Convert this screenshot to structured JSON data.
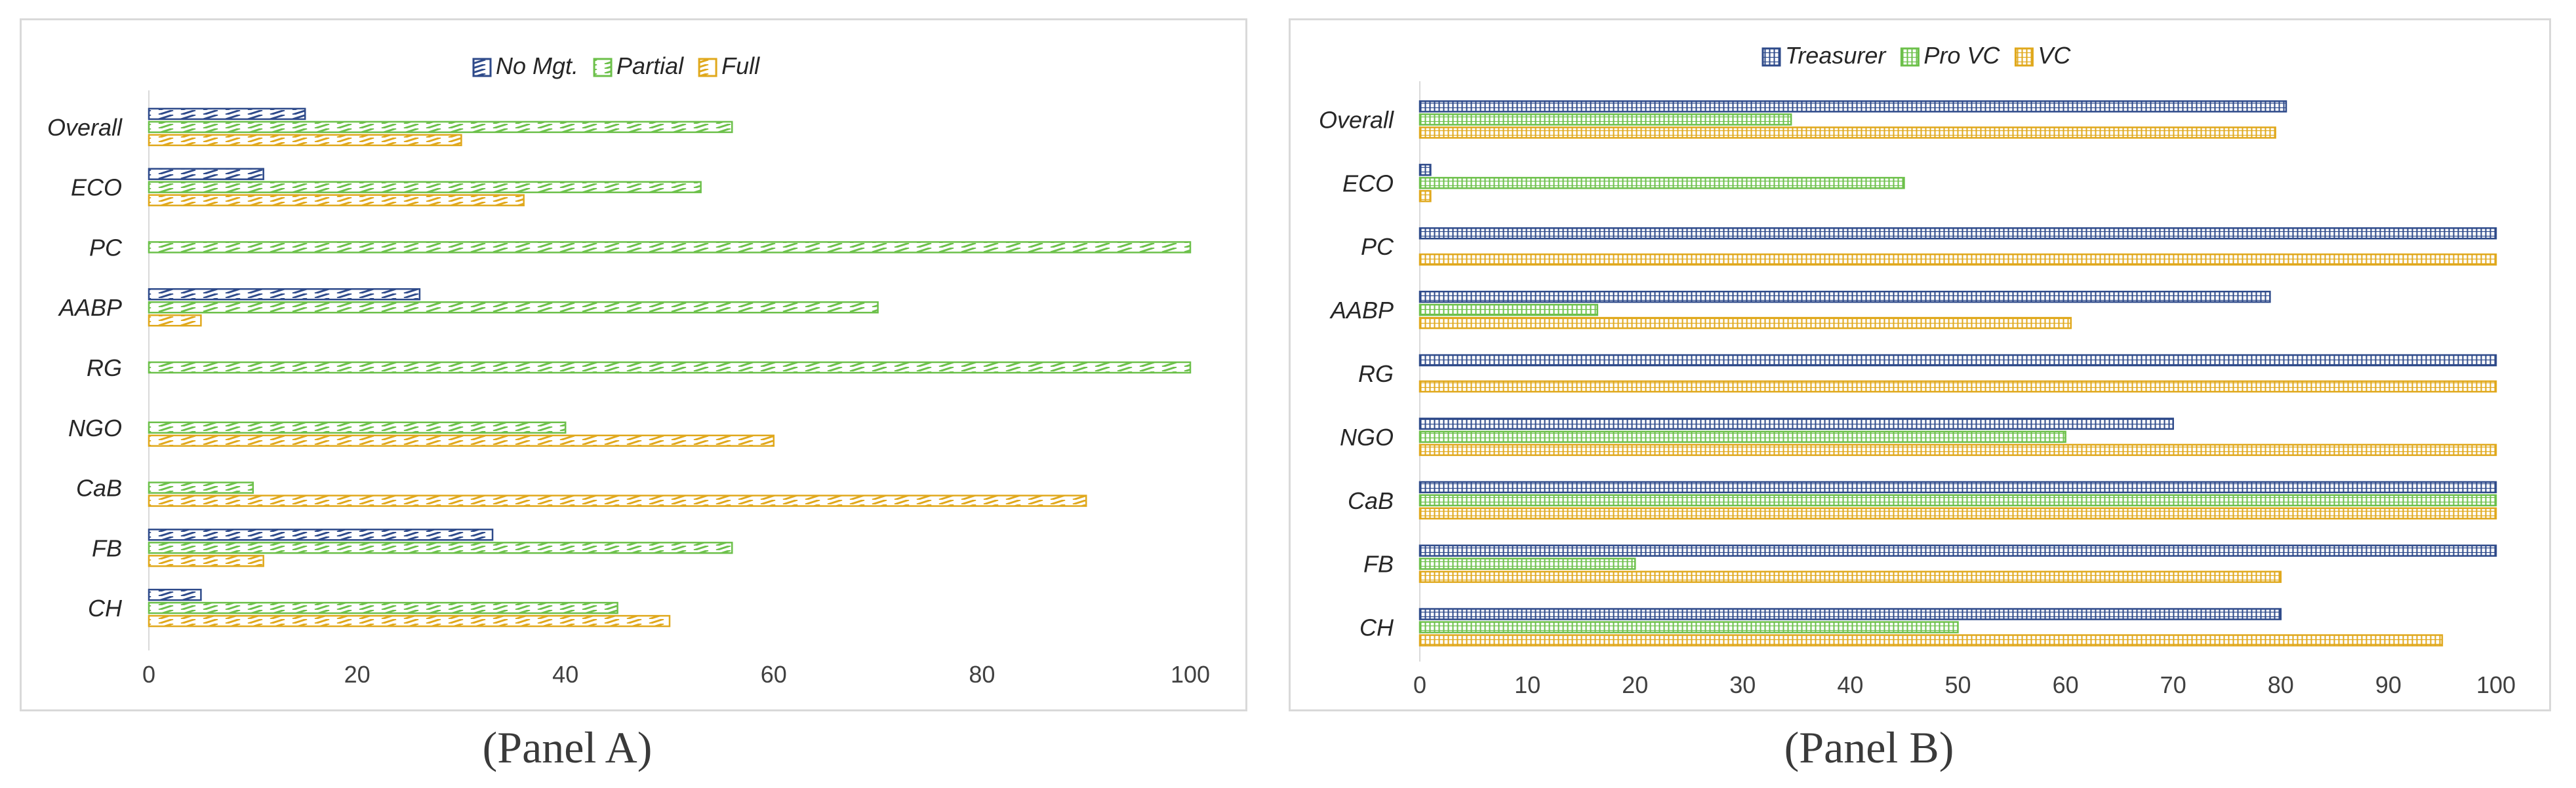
{
  "chart_data": [
    {
      "type": "bar",
      "orientation": "horizontal",
      "panel": "A",
      "caption": "(Panel A)",
      "categories": [
        "Overall",
        "ECO",
        "PC",
        "AABP",
        "RG",
        "NGO",
        "CaB",
        "FB",
        "CH"
      ],
      "series": [
        {
          "name": "No Mgt.",
          "color": "#2e4a8a",
          "pattern": "diagonal",
          "values": [
            15,
            11,
            0,
            26,
            0,
            0,
            0,
            33,
            5
          ]
        },
        {
          "name": "Partial",
          "color": "#6cc04a",
          "pattern": "diagonal",
          "values": [
            56,
            53,
            100,
            70,
            100,
            40,
            10,
            56,
            45
          ]
        },
        {
          "name": "Full",
          "color": "#e0a81c",
          "pattern": "diagonal",
          "values": [
            30,
            36,
            0,
            5,
            0,
            60,
            90,
            11,
            50
          ]
        }
      ],
      "xlim": [
        0,
        100
      ],
      "xticks": [
        "0",
        "20",
        "40",
        "60",
        "80",
        "100"
      ],
      "legend_position": "top-center",
      "grid": false
    },
    {
      "type": "bar",
      "orientation": "horizontal",
      "panel": "B",
      "caption": "(Panel B)",
      "categories": [
        "Overall",
        "ECO",
        "PC",
        "AABP",
        "RG",
        "NGO",
        "CaB",
        "FB",
        "CH"
      ],
      "series": [
        {
          "name": "Treasurer",
          "color": "#2e4a8a",
          "pattern": "grid",
          "values": [
            80.5,
            1,
            100,
            79,
            100,
            70,
            100,
            100,
            80
          ]
        },
        {
          "name": "Pro VC",
          "color": "#6cc04a",
          "pattern": "grid",
          "values": [
            34.5,
            45,
            0,
            16.5,
            0,
            60,
            100,
            20,
            50
          ]
        },
        {
          "name": "VC",
          "color": "#e0a81c",
          "pattern": "grid",
          "values": [
            79.5,
            1,
            100,
            60.5,
            100,
            100,
            100,
            80,
            95
          ]
        }
      ],
      "xlim": [
        0,
        100
      ],
      "xticks": [
        "0",
        "10",
        "20",
        "30",
        "40",
        "50",
        "60",
        "70",
        "80",
        "90",
        "100"
      ],
      "legend_position": "top-center",
      "grid": false
    }
  ]
}
